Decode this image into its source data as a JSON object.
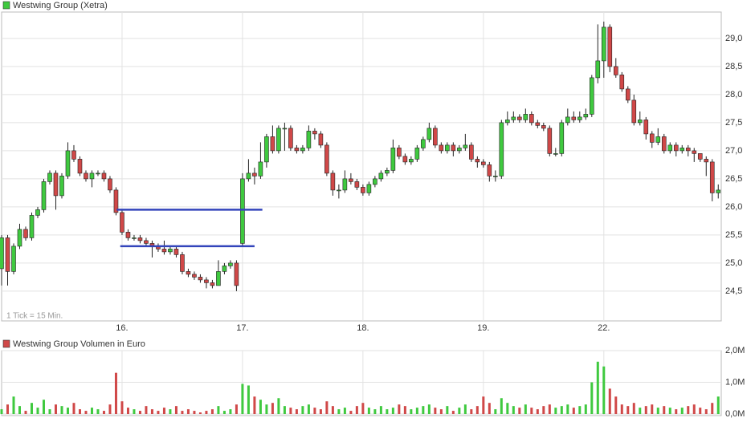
{
  "chart_data": [
    {
      "type": "candlestick",
      "title": "Westwing Group (Xetra)",
      "note": "1 Tick = 15 Min.",
      "up_color": "#3fc93f",
      "down_color": "#d04848",
      "grid": true,
      "xlim": [
        0,
        119.5
      ],
      "xticks": [
        {
          "value": 20,
          "label": "16."
        },
        {
          "value": 40,
          "label": "17."
        },
        {
          "value": 60,
          "label": "18."
        },
        {
          "value": 80,
          "label": "19."
        },
        {
          "value": 100,
          "label": "22."
        }
      ],
      "ylim": [
        23.97,
        29.47
      ],
      "yticks": [
        {
          "value": 24.5,
          "label": "24,5"
        },
        {
          "value": 25,
          "label": "25,0"
        },
        {
          "value": 25.5,
          "label": "25,5"
        },
        {
          "value": 26,
          "label": "26,0"
        },
        {
          "value": 26.5,
          "label": "26,5"
        },
        {
          "value": 27,
          "label": "27,0"
        },
        {
          "value": 27.5,
          "label": "27,5"
        },
        {
          "value": 28,
          "label": "28,0"
        },
        {
          "value": 28.5,
          "label": "28,5"
        },
        {
          "value": 29,
          "label": "29,0"
        }
      ],
      "open": [
        24.9,
        25.45,
        24.85,
        25.3,
        25.6,
        25.45,
        25.85,
        25.95,
        26.45,
        26.6,
        26.2,
        26.55,
        27.0,
        26.85,
        26.6,
        26.5,
        26.6,
        26.6,
        26.5,
        26.3,
        25.9,
        25.55,
        25.45,
        25.45,
        25.4,
        25.35,
        25.3,
        25.25,
        25.2,
        25.25,
        25.15,
        24.85,
        24.8,
        24.75,
        24.7,
        24.65,
        24.6,
        24.85,
        24.95,
        25.0,
        25.35,
        26.5,
        26.6,
        26.55,
        26.8,
        27.25,
        27.0,
        27.4,
        27.4,
        27.05,
        27.0,
        27.05,
        27.35,
        27.3,
        27.1,
        26.6,
        26.3,
        26.3,
        26.5,
        26.45,
        26.35,
        26.25,
        26.4,
        26.5,
        26.6,
        26.65,
        27.05,
        26.9,
        26.8,
        26.85,
        27.05,
        27.2,
        27.4,
        27.1,
        27.0,
        27.1,
        27.0,
        27.05,
        27.1,
        26.85,
        26.8,
        26.75,
        26.55,
        26.55,
        27.5,
        27.55,
        27.6,
        27.55,
        27.65,
        27.5,
        27.45,
        27.4,
        26.95,
        26.95,
        27.5,
        27.6,
        27.55,
        27.6,
        27.65,
        28.3,
        28.6,
        29.2,
        28.5,
        28.35,
        28.1,
        27.9,
        27.5,
        27.55,
        27.3,
        27.15,
        27.25,
        27.0,
        27.1,
        27.0,
        27.05,
        27.0,
        26.95,
        26.85,
        26.8,
        26.25
      ],
      "high": [
        25.5,
        25.5,
        25.35,
        25.7,
        25.65,
        25.9,
        26.0,
        26.5,
        26.65,
        26.65,
        26.6,
        27.15,
        27.1,
        26.9,
        26.65,
        26.65,
        26.65,
        26.65,
        26.55,
        26.35,
        25.95,
        25.6,
        25.5,
        25.5,
        25.45,
        25.4,
        25.35,
        25.4,
        25.3,
        25.3,
        25.2,
        24.9,
        24.85,
        24.8,
        24.75,
        24.7,
        25.05,
        25.0,
        25.05,
        25.05,
        26.6,
        26.85,
        26.7,
        27.15,
        27.3,
        27.45,
        27.45,
        27.5,
        27.45,
        27.1,
        27.1,
        27.45,
        27.4,
        27.35,
        27.15,
        26.65,
        26.4,
        26.65,
        26.6,
        26.5,
        26.4,
        26.45,
        26.55,
        26.65,
        26.7,
        27.2,
        27.1,
        26.95,
        26.9,
        27.1,
        27.25,
        27.5,
        27.45,
        27.15,
        27.15,
        27.15,
        27.1,
        27.3,
        27.15,
        26.9,
        26.85,
        26.8,
        26.65,
        27.55,
        27.7,
        27.7,
        27.65,
        27.75,
        27.7,
        27.55,
        27.5,
        27.45,
        27.05,
        27.55,
        27.75,
        27.7,
        27.7,
        27.75,
        28.35,
        29.25,
        29.3,
        29.25,
        28.65,
        28.4,
        28.15,
        28.0,
        27.7,
        27.6,
        27.35,
        27.4,
        27.3,
        27.15,
        27.15,
        27.1,
        27.1,
        27.05,
        26.95,
        26.9,
        26.85,
        26.4
      ],
      "low": [
        24.6,
        24.6,
        24.8,
        25.25,
        25.4,
        25.4,
        25.8,
        25.9,
        26.4,
        25.95,
        26.15,
        26.5,
        26.8,
        26.55,
        26.45,
        26.35,
        26.55,
        26.45,
        26.25,
        25.85,
        25.5,
        25.4,
        25.4,
        25.35,
        25.3,
        25.1,
        25.2,
        25.15,
        25.15,
        25.1,
        24.8,
        24.75,
        24.7,
        24.65,
        24.55,
        24.55,
        24.6,
        24.8,
        24.9,
        24.5,
        25.3,
        26.45,
        26.4,
        26.5,
        26.7,
        26.95,
        26.95,
        27.0,
        27.0,
        26.95,
        26.95,
        27.0,
        27.2,
        27.05,
        26.55,
        26.2,
        26.15,
        26.25,
        26.4,
        26.3,
        26.2,
        26.2,
        26.35,
        26.45,
        26.55,
        26.6,
        26.85,
        26.75,
        26.75,
        26.8,
        27.0,
        27.15,
        27.05,
        26.95,
        26.95,
        26.9,
        26.95,
        27.0,
        26.8,
        26.7,
        26.7,
        26.45,
        26.45,
        26.5,
        27.45,
        27.5,
        27.5,
        27.5,
        27.45,
        27.4,
        27.35,
        26.9,
        26.9,
        26.9,
        27.45,
        27.5,
        27.5,
        27.55,
        27.6,
        28.2,
        28.3,
        28.4,
        28.3,
        28.05,
        27.85,
        27.45,
        27.45,
        27.2,
        27.05,
        27.1,
        26.95,
        26.95,
        26.9,
        26.95,
        26.9,
        26.8,
        26.8,
        26.55,
        26.1,
        26.15
      ],
      "close": [
        25.45,
        24.85,
        25.3,
        25.6,
        25.45,
        25.85,
        25.95,
        26.45,
        26.6,
        26.2,
        26.55,
        27.0,
        26.85,
        26.6,
        26.5,
        26.6,
        26.6,
        26.5,
        26.3,
        25.9,
        25.55,
        25.45,
        25.45,
        25.4,
        25.35,
        25.3,
        25.25,
        25.2,
        25.25,
        25.15,
        24.85,
        24.8,
        24.75,
        24.7,
        24.65,
        24.6,
        24.85,
        24.95,
        25.0,
        24.6,
        26.5,
        26.6,
        26.55,
        26.8,
        27.25,
        27.0,
        27.4,
        27.4,
        27.05,
        27.0,
        27.05,
        27.35,
        27.3,
        27.1,
        26.6,
        26.3,
        26.3,
        26.5,
        26.45,
        26.35,
        26.25,
        26.4,
        26.5,
        26.6,
        26.65,
        27.05,
        26.9,
        26.8,
        26.85,
        27.05,
        27.2,
        27.4,
        27.1,
        27.0,
        27.1,
        27.0,
        27.05,
        27.1,
        26.85,
        26.8,
        26.75,
        26.55,
        26.55,
        27.5,
        27.55,
        27.6,
        27.55,
        27.65,
        27.5,
        27.45,
        27.4,
        26.95,
        26.95,
        27.5,
        27.6,
        27.55,
        27.6,
        27.65,
        28.3,
        28.6,
        29.2,
        28.5,
        28.35,
        28.1,
        27.9,
        27.5,
        27.55,
        27.3,
        27.15,
        27.25,
        27.0,
        27.1,
        27.0,
        27.05,
        27.0,
        26.95,
        26.85,
        26.8,
        26.25,
        26.3
      ],
      "lines": [
        {
          "y": 25.95,
          "x": [
            19.1,
            43.3
          ],
          "color": "#3344bb"
        },
        {
          "y": 25.3,
          "x": [
            19.7,
            42.0
          ],
          "color": "#3344bb"
        }
      ]
    },
    {
      "type": "bar",
      "title": "Westwing Group Volumen in Euro",
      "grid": true,
      "xlim": [
        0,
        119.5
      ],
      "ylim": [
        -50000,
        2000000
      ],
      "yticks": [
        {
          "value": 0,
          "label": "0,0M"
        },
        {
          "value": 1000000,
          "label": "1,0M"
        },
        {
          "value": 2000000,
          "label": "2,0M"
        }
      ],
      "values": [
        150000,
        300000,
        550000,
        250000,
        100000,
        350000,
        200000,
        450000,
        150000,
        300000,
        250000,
        200000,
        350000,
        150000,
        100000,
        200000,
        150000,
        100000,
        300000,
        1300000,
        400000,
        200000,
        150000,
        100000,
        250000,
        150000,
        100000,
        200000,
        150000,
        250000,
        100000,
        150000,
        100000,
        50000,
        100000,
        150000,
        250000,
        100000,
        150000,
        300000,
        950000,
        900000,
        550000,
        450000,
        300000,
        350000,
        500000,
        250000,
        200000,
        150000,
        250000,
        300000,
        200000,
        150000,
        400000,
        250000,
        150000,
        200000,
        100000,
        250000,
        350000,
        200000,
        150000,
        250000,
        150000,
        200000,
        300000,
        250000,
        150000,
        200000,
        250000,
        300000,
        200000,
        150000,
        250000,
        100000,
        200000,
        300000,
        150000,
        250000,
        550000,
        350000,
        150000,
        500000,
        350000,
        250000,
        200000,
        300000,
        200000,
        150000,
        250000,
        300000,
        200000,
        250000,
        300000,
        200000,
        250000,
        300000,
        1000000,
        1650000,
        1500000,
        800000,
        550000,
        300000,
        250000,
        350000,
        200000,
        250000,
        300000,
        200000,
        250000,
        200000,
        150000,
        200000,
        250000,
        300000,
        200000,
        150000,
        350000,
        550000
      ]
    }
  ]
}
